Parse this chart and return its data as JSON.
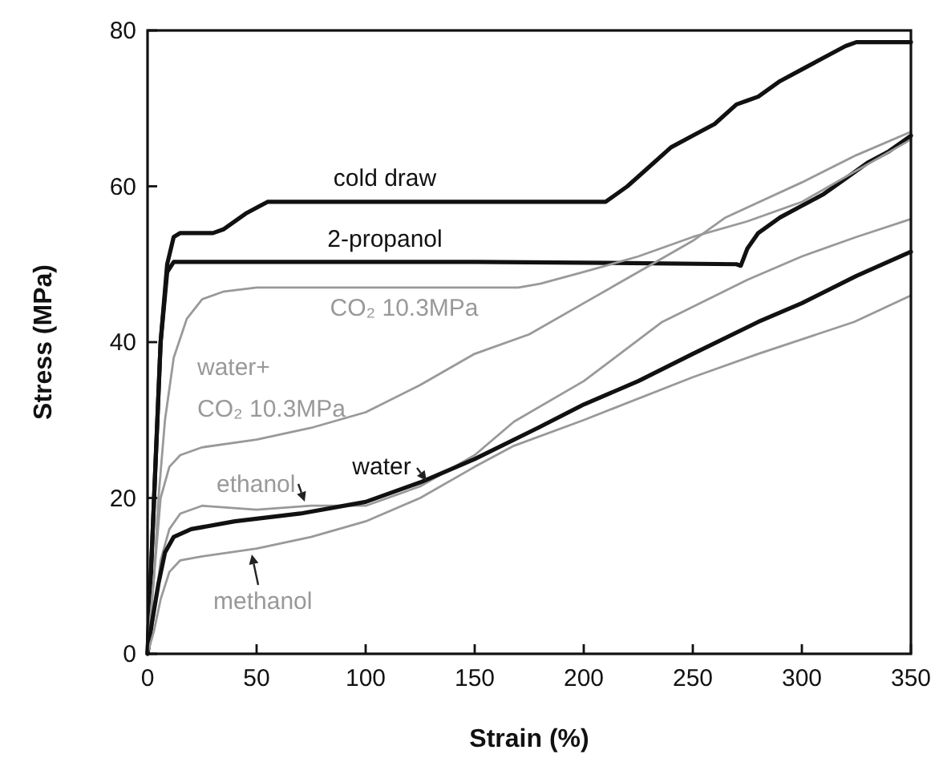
{
  "chart_data": {
    "type": "line",
    "xlabel": "Strain (%)",
    "ylabel": "Stress (MPa)",
    "xlim": [
      0,
      350
    ],
    "ylim": [
      0,
      80
    ],
    "xticks": [
      0,
      50,
      100,
      150,
      200,
      250,
      300,
      350
    ],
    "yticks": [
      0,
      20,
      40,
      60,
      80
    ],
    "grid": false,
    "marker": "none",
    "line_style": "solid",
    "series": [
      {
        "name": "cold draw",
        "color": "#111111",
        "x": [
          0,
          3,
          6,
          9,
          12,
          15,
          30,
          35,
          45,
          55,
          60,
          100,
          150,
          210,
          220,
          230,
          240,
          250,
          260,
          270,
          275,
          280,
          290,
          300,
          310,
          320,
          325,
          350
        ],
        "values": [
          0,
          20,
          40,
          50,
          53.5,
          54,
          54,
          54.5,
          56.5,
          58,
          58,
          58,
          58,
          58,
          60,
          62.5,
          65,
          66.5,
          68,
          70.5,
          71,
          71.5,
          73.5,
          75,
          76.5,
          78,
          78.5,
          78.5
        ]
      },
      {
        "name": "2-propanol",
        "color": "#111111",
        "x": [
          0,
          3,
          6,
          9,
          12,
          50,
          150,
          200,
          270,
          272,
          275,
          280,
          290,
          300,
          310,
          320,
          330,
          340,
          350
        ],
        "values": [
          0,
          20,
          40,
          49,
          50.3,
          50.3,
          50.3,
          50.2,
          50,
          49.8,
          52,
          54,
          56,
          57.5,
          59,
          61,
          63,
          64.5,
          66.5
        ]
      },
      {
        "name": "CO₂ 10.3MPa",
        "color": "#999999",
        "x": [
          0,
          3,
          5,
          8,
          12,
          18,
          25,
          35,
          50,
          100,
          170,
          180,
          200,
          225,
          250,
          275,
          300,
          325,
          350
        ],
        "values": [
          0,
          10,
          20,
          30,
          38,
          43,
          45.5,
          46.5,
          47,
          47,
          47,
          47.5,
          49,
          51,
          53.5,
          55.5,
          58,
          62,
          66
        ]
      },
      {
        "name": "water+\nCO₂ 10.3MPa",
        "color": "#999999",
        "x": [
          0,
          3,
          6,
          10,
          15,
          25,
          50,
          75,
          100,
          125,
          150,
          175,
          200,
          225,
          250,
          265,
          300,
          325,
          350
        ],
        "values": [
          0,
          10,
          20,
          24,
          25.5,
          26.5,
          27.5,
          29,
          31,
          34.5,
          38.5,
          41,
          45,
          49,
          53,
          56,
          60.5,
          64,
          67
        ]
      },
      {
        "name": "ethanol",
        "color": "#999999",
        "x": [
          0,
          3,
          6,
          10,
          15,
          25,
          50,
          75,
          100,
          125,
          150,
          168,
          200,
          236,
          275,
          300,
          325,
          350
        ],
        "values": [
          0,
          5,
          12,
          16,
          18,
          19,
          18.5,
          19,
          19,
          21.5,
          25.5,
          29.8,
          35,
          42.6,
          48,
          51,
          53.5,
          55.8
        ]
      },
      {
        "name": "water",
        "color": "#111111",
        "x": [
          0,
          2,
          5,
          8,
          12,
          20,
          40,
          70,
          100,
          125,
          150,
          179,
          200,
          225,
          250,
          280,
          300,
          325,
          350
        ],
        "values": [
          0,
          4,
          9,
          13,
          15,
          16,
          17,
          18,
          19.5,
          22,
          25,
          29,
          32,
          35,
          38.5,
          42.6,
          45,
          48.5,
          51.6
        ]
      },
      {
        "name": "methanol",
        "color": "#999999",
        "x": [
          0,
          3,
          6,
          10,
          15,
          25,
          50,
          75,
          100,
          125,
          150,
          168,
          200,
          250,
          280,
          324,
          350
        ],
        "values": [
          0,
          3,
          7,
          10.5,
          12,
          12.5,
          13.5,
          15,
          17,
          20,
          24,
          26.7,
          30,
          35.5,
          38.5,
          42.6,
          46
        ]
      }
    ]
  }
}
